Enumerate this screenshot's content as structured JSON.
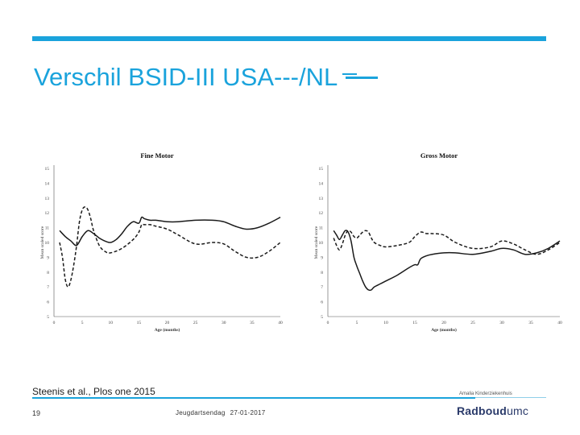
{
  "slide": {
    "title": "Verschil BSID-III  USA---/NL",
    "citation": "Steenis et al., Plos one 2015",
    "page_number": "19",
    "event": "Jeugdartsendag",
    "date": "27-01-2017",
    "organization": "Amalia Kinderziekenhuis",
    "logo_main": "Radboud",
    "logo_suffix": "umc"
  },
  "colors": {
    "accent": "#1aa3dc",
    "line": "#1a1a1a",
    "axis": "#555555"
  },
  "chart_data": [
    {
      "type": "line",
      "title": "Fine Motor",
      "xlabel": "Age (months)",
      "ylabel": "Mean scaled score",
      "xlim": [
        0,
        40
      ],
      "ylim": [
        5,
        15
      ],
      "xticks": [
        0,
        5,
        10,
        15,
        20,
        25,
        30,
        35,
        40
      ],
      "yticks": [
        5,
        6,
        7,
        8,
        9,
        10,
        11,
        12,
        13,
        14,
        15
      ],
      "grid": false,
      "series": [
        {
          "name": "NL",
          "style": "solid",
          "x": [
            1,
            2,
            3,
            4,
            5,
            6,
            7,
            8,
            9,
            10,
            11,
            12,
            13,
            14,
            15,
            15.5,
            16,
            17,
            18,
            20,
            22,
            25,
            28,
            30,
            32,
            34,
            36,
            38,
            40
          ],
          "y": [
            10.8,
            10.4,
            10.1,
            9.8,
            10.4,
            10.8,
            10.6,
            10.3,
            10.1,
            10.0,
            10.2,
            10.6,
            11.1,
            11.4,
            11.3,
            11.7,
            11.6,
            11.5,
            11.5,
            11.4,
            11.4,
            11.5,
            11.5,
            11.4,
            11.1,
            10.9,
            11.0,
            11.3,
            11.7
          ]
        },
        {
          "name": "USA",
          "style": "dashed",
          "x": [
            1,
            1.5,
            2,
            2.5,
            3,
            3.5,
            4,
            4.5,
            5,
            5.5,
            6,
            6.5,
            7,
            8,
            9,
            10,
            12,
            14,
            15,
            15.5,
            16,
            17,
            18,
            20,
            22,
            25,
            28,
            30,
            32,
            34,
            36,
            38,
            40
          ],
          "y": [
            10.0,
            9.0,
            7.5,
            7.0,
            7.5,
            8.5,
            9.8,
            11.4,
            12.2,
            12.4,
            12.2,
            11.6,
            10.8,
            9.8,
            9.4,
            9.3,
            9.6,
            10.2,
            10.7,
            11.2,
            11.2,
            11.2,
            11.1,
            10.9,
            10.5,
            9.9,
            10.0,
            9.9,
            9.4,
            9.0,
            9.0,
            9.4,
            10.0
          ]
        }
      ]
    },
    {
      "type": "line",
      "title": "Gross Motor",
      "xlabel": "Age (months)",
      "ylabel": "Mean scaled score",
      "xlim": [
        0,
        40
      ],
      "ylim": [
        5,
        15
      ],
      "xticks": [
        0,
        5,
        10,
        15,
        20,
        25,
        30,
        35,
        40
      ],
      "yticks": [
        5,
        6,
        7,
        8,
        9,
        10,
        11,
        12,
        13,
        14,
        15
      ],
      "grid": false,
      "series": [
        {
          "name": "NL",
          "style": "solid",
          "x": [
            1,
            1.5,
            2,
            2.5,
            3,
            3.5,
            4,
            4.5,
            5,
            5.5,
            6,
            6.5,
            7,
            7.5,
            8,
            9,
            10,
            12,
            14,
            15,
            15.5,
            16,
            17,
            18,
            20,
            22,
            25,
            28,
            30,
            32,
            34,
            36,
            38,
            40
          ],
          "y": [
            10.8,
            10.5,
            10.2,
            10.5,
            10.8,
            10.7,
            10.1,
            9.0,
            8.4,
            7.9,
            7.4,
            7.0,
            6.8,
            6.8,
            7.0,
            7.2,
            7.4,
            7.8,
            8.3,
            8.5,
            8.5,
            8.9,
            9.1,
            9.2,
            9.3,
            9.3,
            9.2,
            9.4,
            9.6,
            9.5,
            9.2,
            9.3,
            9.6,
            10.1
          ]
        },
        {
          "name": "USA",
          "style": "dashed",
          "x": [
            1,
            1.5,
            2,
            2.5,
            3,
            3.5,
            4,
            4.5,
            5,
            5.5,
            6,
            6.5,
            7,
            7.5,
            8,
            9,
            10,
            12,
            14,
            15,
            16,
            17,
            18,
            20,
            22,
            25,
            28,
            30,
            32,
            34,
            36,
            38,
            40
          ],
          "y": [
            10.3,
            9.8,
            9.5,
            9.9,
            10.5,
            10.8,
            10.7,
            10.4,
            10.3,
            10.5,
            10.7,
            10.8,
            10.7,
            10.3,
            10.0,
            9.8,
            9.7,
            9.8,
            10.0,
            10.4,
            10.7,
            10.6,
            10.6,
            10.5,
            10.0,
            9.6,
            9.7,
            10.1,
            9.9,
            9.5,
            9.2,
            9.5,
            10.0
          ]
        }
      ]
    }
  ]
}
